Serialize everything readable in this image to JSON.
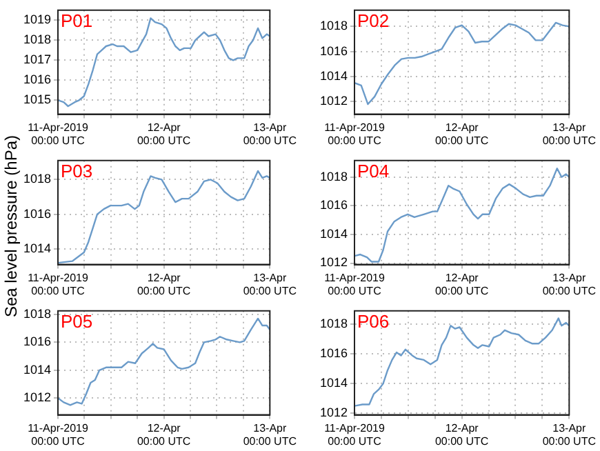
{
  "chart_data": [
    {
      "type": "line",
      "title": "P01",
      "ylim": [
        1014.3,
        1019.5
      ],
      "yticks": [
        1015,
        1016,
        1017,
        1018,
        1019
      ],
      "xlim": [
        "2019-04-11T00:00",
        "2019-04-13T00:00"
      ],
      "xticks": [
        {
          "value": "2019-04-11T00:00",
          "label": "11-Apr-2019\n00:00 UTC"
        },
        {
          "value": "2019-04-11T06:00",
          "label": null
        },
        {
          "value": "2019-04-11T12:00",
          "label": null
        },
        {
          "value": "2019-04-11T18:00",
          "label": null
        },
        {
          "value": "2019-04-12T00:00",
          "label": "12-Apr\n00:00 UTC"
        },
        {
          "value": "2019-04-12T06:00",
          "label": null
        },
        {
          "value": "2019-04-12T12:00",
          "label": null
        },
        {
          "value": "2019-04-12T18:00",
          "label": null
        },
        {
          "value": "2019-04-13T00:00",
          "label": "13-Apr\n00:00 UTC"
        }
      ],
      "grid": true,
      "series": [
        {
          "color": "#6b9bc9",
          "x": [
            "2019-04-11T00:00",
            "2019-04-11T01:18",
            "2019-04-11T02:18",
            "2019-04-11T03:48",
            "2019-04-11T04:48",
            "2019-04-11T05:54",
            "2019-04-11T06:54",
            "2019-04-11T07:54",
            "2019-04-11T08:54",
            "2019-04-11T09:54",
            "2019-04-11T10:54",
            "2019-04-11T12:24",
            "2019-04-11T13:24",
            "2019-04-11T14:54",
            "2019-04-11T16:30",
            "2019-04-11T18:00",
            "2019-04-11T19:00",
            "2019-04-11T20:00",
            "2019-04-11T21:00",
            "2019-04-11T22:00",
            "2019-04-11T23:30",
            "2019-04-12T00:36",
            "2019-04-12T01:36",
            "2019-04-12T02:36",
            "2019-04-12T03:36",
            "2019-04-12T04:36",
            "2019-04-12T06:06",
            "2019-04-12T07:06",
            "2019-04-12T08:06",
            "2019-04-12T09:06",
            "2019-04-12T10:06",
            "2019-04-12T11:42",
            "2019-04-12T12:42",
            "2019-04-12T13:42",
            "2019-04-12T14:42",
            "2019-04-12T15:42",
            "2019-04-12T16:42",
            "2019-04-12T18:12",
            "2019-04-12T19:12",
            "2019-04-12T20:12",
            "2019-04-12T21:18",
            "2019-04-12T22:18",
            "2019-04-12T23:18",
            "2019-04-13T00:00"
          ],
          "values": [
            1015,
            1014.9,
            1014.7,
            1014.9,
            1015,
            1015.2,
            1015.8,
            1016.5,
            1017.3,
            1017.5,
            1017.7,
            1017.8,
            1017.7,
            1017.7,
            1017.4,
            1017.5,
            1017.9,
            1018.3,
            1019.1,
            1018.9,
            1018.8,
            1018.6,
            1018.1,
            1017.7,
            1017.5,
            1017.6,
            1017.6,
            1018,
            1018.2,
            1018.4,
            1018.2,
            1018.3,
            1018,
            1017.5,
            1017.1,
            1017,
            1017.1,
            1017.1,
            1017.7,
            1018,
            1018.6,
            1018.1,
            1018.3,
            1018.2
          ]
        }
      ]
    },
    {
      "type": "line",
      "title": "P02",
      "ylim": [
        1011,
        1019.3
      ],
      "yticks": [
        1012,
        1014,
        1016,
        1018
      ],
      "xlim": [
        "2019-04-11T00:00",
        "2019-04-13T00:00"
      ],
      "xticks": [
        {
          "value": "2019-04-11T00:00",
          "label": "11-Apr-2019\n00:00 UTC"
        },
        {
          "value": "2019-04-11T06:00",
          "label": null
        },
        {
          "value": "2019-04-11T12:00",
          "label": null
        },
        {
          "value": "2019-04-11T18:00",
          "label": null
        },
        {
          "value": "2019-04-12T00:00",
          "label": "12-Apr\n00:00 UTC"
        },
        {
          "value": "2019-04-12T06:00",
          "label": null
        },
        {
          "value": "2019-04-12T12:00",
          "label": null
        },
        {
          "value": "2019-04-12T18:00",
          "label": null
        },
        {
          "value": "2019-04-13T00:00",
          "label": "13-Apr\n00:00 UTC"
        }
      ],
      "grid": true,
      "series": [
        {
          "color": "#6b9bc9",
          "x": [
            "2019-04-11T00:00",
            "2019-04-11T01:30",
            "2019-04-11T03:00",
            "2019-04-11T04:30",
            "2019-04-11T06:00",
            "2019-04-11T07:30",
            "2019-04-11T09:00",
            "2019-04-11T10:30",
            "2019-04-11T12:00",
            "2019-04-11T13:30",
            "2019-04-11T15:00",
            "2019-04-11T16:30",
            "2019-04-11T18:00",
            "2019-04-11T19:30",
            "2019-04-11T21:00",
            "2019-04-11T22:30",
            "2019-04-12T00:00",
            "2019-04-12T01:30",
            "2019-04-12T03:00",
            "2019-04-12T04:30",
            "2019-04-12T06:00",
            "2019-04-12T07:30",
            "2019-04-12T09:00",
            "2019-04-12T10:30",
            "2019-04-12T12:00",
            "2019-04-12T13:30",
            "2019-04-12T15:00",
            "2019-04-12T16:30",
            "2019-04-12T18:00",
            "2019-04-12T19:30",
            "2019-04-12T21:00",
            "2019-04-12T22:30",
            "2019-04-13T00:00"
          ],
          "values": [
            1013.5,
            1013.3,
            1011.8,
            1012.4,
            1013.4,
            1014.2,
            1014.9,
            1015.4,
            1015.5,
            1015.5,
            1015.6,
            1015.8,
            1016,
            1016.2,
            1017.1,
            1017.9,
            1018.1,
            1017.6,
            1016.7,
            1016.8,
            1016.8,
            1017.3,
            1017.8,
            1018.2,
            1018.1,
            1017.8,
            1017.5,
            1016.9,
            1016.9,
            1017.6,
            1018.3,
            1018.1,
            1018
          ]
        }
      ]
    },
    {
      "type": "line",
      "title": "P03",
      "ylabel": "Sea level pressure (hPa)",
      "ylim": [
        1013.1,
        1019.1
      ],
      "yticks": [
        1014,
        1016,
        1018
      ],
      "xlim": [
        "2019-04-11T00:00",
        "2019-04-13T00:00"
      ],
      "xticks": [
        {
          "value": "2019-04-11T00:00",
          "label": "11-Apr-2019\n00:00 UTC"
        },
        {
          "value": "2019-04-11T06:00",
          "label": null
        },
        {
          "value": "2019-04-11T12:00",
          "label": null
        },
        {
          "value": "2019-04-11T18:00",
          "label": null
        },
        {
          "value": "2019-04-12T00:00",
          "label": "12-Apr\n00:00 UTC"
        },
        {
          "value": "2019-04-12T06:00",
          "label": null
        },
        {
          "value": "2019-04-12T12:00",
          "label": null
        },
        {
          "value": "2019-04-12T18:00",
          "label": null
        },
        {
          "value": "2019-04-13T00:00",
          "label": "13-Apr\n00:00 UTC"
        }
      ],
      "grid": true,
      "series": [
        {
          "color": "#6b9bc9",
          "x": [
            "2019-04-11T00:00",
            "2019-04-11T03:18",
            "2019-04-11T05:54",
            "2019-04-11T06:54",
            "2019-04-11T07:54",
            "2019-04-11T08:54",
            "2019-04-11T10:24",
            "2019-04-11T11:54",
            "2019-04-11T14:24",
            "2019-04-11T15:54",
            "2019-04-11T17:24",
            "2019-04-11T18:24",
            "2019-04-11T19:24",
            "2019-04-11T21:00",
            "2019-04-11T22:00",
            "2019-04-11T23:30",
            "2019-04-12T01:06",
            "2019-04-12T02:36",
            "2019-04-12T04:06",
            "2019-04-12T05:36",
            "2019-04-12T07:36",
            "2019-04-12T09:06",
            "2019-04-12T10:36",
            "2019-04-12T12:06",
            "2019-04-12T13:42",
            "2019-04-12T15:12",
            "2019-04-12T16:42",
            "2019-04-12T18:12",
            "2019-04-12T19:42",
            "2019-04-12T21:18",
            "2019-04-12T22:18",
            "2019-04-12T23:18",
            "2019-04-13T00:00"
          ],
          "values": [
            1013.2,
            1013.3,
            1013.8,
            1014.4,
            1015.2,
            1016,
            1016.3,
            1016.5,
            1016.5,
            1016.6,
            1016.3,
            1016.5,
            1017.3,
            1018.2,
            1018.1,
            1018,
            1017.3,
            1016.7,
            1016.9,
            1016.9,
            1017.3,
            1017.9,
            1018,
            1017.8,
            1017.3,
            1017,
            1016.8,
            1016.9,
            1017.6,
            1018.5,
            1018.1,
            1018.2,
            1018.1
          ]
        }
      ]
    },
    {
      "type": "line",
      "title": "P04",
      "ylim": [
        1011.9,
        1019.15
      ],
      "yticks": [
        1012,
        1014,
        1016,
        1018
      ],
      "xlim": [
        "2019-04-11T00:00",
        "2019-04-13T00:00"
      ],
      "xticks": [
        {
          "value": "2019-04-11T00:00",
          "label": "11-Apr-2019\n00:00 UTC"
        },
        {
          "value": "2019-04-11T06:00",
          "label": null
        },
        {
          "value": "2019-04-11T12:00",
          "label": null
        },
        {
          "value": "2019-04-11T18:00",
          "label": null
        },
        {
          "value": "2019-04-12T00:00",
          "label": "12-Apr\n00:00 UTC"
        },
        {
          "value": "2019-04-12T06:00",
          "label": null
        },
        {
          "value": "2019-04-12T12:00",
          "label": null
        },
        {
          "value": "2019-04-12T18:00",
          "label": null
        },
        {
          "value": "2019-04-13T00:00",
          "label": "13-Apr\n00:00 UTC"
        }
      ],
      "grid": true,
      "series": [
        {
          "color": "#6b9bc9",
          "x": [
            "2019-04-11T00:00",
            "2019-04-11T01:18",
            "2019-04-11T02:48",
            "2019-04-11T03:48",
            "2019-04-11T05:24",
            "2019-04-11T06:24",
            "2019-04-11T07:24",
            "2019-04-11T08:54",
            "2019-04-11T10:24",
            "2019-04-11T11:54",
            "2019-04-11T13:24",
            "2019-04-11T15:30",
            "2019-04-11T17:30",
            "2019-04-11T18:30",
            "2019-04-11T19:30",
            "2019-04-11T21:00",
            "2019-04-11T22:00",
            "2019-04-11T23:30",
            "2019-04-12T01:06",
            "2019-04-12T02:36",
            "2019-04-12T03:36",
            "2019-04-12T04:36",
            "2019-04-12T06:06",
            "2019-04-12T07:36",
            "2019-04-12T09:06",
            "2019-04-12T10:36",
            "2019-04-12T12:06",
            "2019-04-12T13:42",
            "2019-04-12T15:12",
            "2019-04-12T16:42",
            "2019-04-12T18:12",
            "2019-04-12T19:42",
            "2019-04-12T21:18",
            "2019-04-12T22:18",
            "2019-04-12T23:18",
            "2019-04-13T00:00"
          ],
          "values": [
            1012.5,
            1012.6,
            1012.4,
            1012.1,
            1012.1,
            1012.9,
            1014.2,
            1014.9,
            1015.2,
            1015.4,
            1015.2,
            1015.4,
            1015.6,
            1015.6,
            1016.3,
            1017.4,
            1017.2,
            1017,
            1016.1,
            1015.4,
            1015.1,
            1015.4,
            1015.4,
            1016.5,
            1017.2,
            1017.5,
            1017.2,
            1016.8,
            1016.6,
            1016.7,
            1016.7,
            1017.4,
            1018.6,
            1018,
            1018.2,
            1018
          ]
        }
      ]
    },
    {
      "type": "line",
      "title": "P05",
      "ylim": [
        1010.8,
        1018.25
      ],
      "yticks": [
        1012,
        1014,
        1016,
        1018
      ],
      "xlim": [
        "2019-04-11T00:00",
        "2019-04-13T00:00"
      ],
      "xticks": [
        {
          "value": "2019-04-11T00:00",
          "label": "11-Apr-2019\n00:00 UTC"
        },
        {
          "value": "2019-04-11T06:00",
          "label": null
        },
        {
          "value": "2019-04-11T12:00",
          "label": null
        },
        {
          "value": "2019-04-11T18:00",
          "label": null
        },
        {
          "value": "2019-04-12T00:00",
          "label": "12-Apr\n00:00 UTC"
        },
        {
          "value": "2019-04-12T06:00",
          "label": null
        },
        {
          "value": "2019-04-12T12:00",
          "label": null
        },
        {
          "value": "2019-04-12T18:00",
          "label": null
        },
        {
          "value": "2019-04-13T00:00",
          "label": "13-Apr\n00:00 UTC"
        }
      ],
      "grid": true,
      "series": [
        {
          "color": "#6b9bc9",
          "x": [
            "2019-04-11T00:00",
            "2019-04-11T01:18",
            "2019-04-11T02:48",
            "2019-04-11T04:18",
            "2019-04-11T05:24",
            "2019-04-11T06:24",
            "2019-04-11T07:24",
            "2019-04-11T08:24",
            "2019-04-11T09:24",
            "2019-04-11T10:54",
            "2019-04-11T12:24",
            "2019-04-11T14:24",
            "2019-04-11T15:54",
            "2019-04-11T17:30",
            "2019-04-11T19:00",
            "2019-04-11T20:30",
            "2019-04-11T21:30",
            "2019-04-11T22:30",
            "2019-04-12T00:00",
            "2019-04-12T01:36",
            "2019-04-12T03:06",
            "2019-04-12T04:06",
            "2019-04-12T05:36",
            "2019-04-12T07:06",
            "2019-04-12T08:06",
            "2019-04-12T09:06",
            "2019-04-12T10:36",
            "2019-04-12T11:42",
            "2019-04-12T12:42",
            "2019-04-12T14:12",
            "2019-04-12T15:42",
            "2019-04-12T17:12",
            "2019-04-12T18:12",
            "2019-04-12T19:42",
            "2019-04-12T21:18",
            "2019-04-12T22:18",
            "2019-04-12T23:18",
            "2019-04-13T00:00"
          ],
          "values": [
            1012,
            1011.7,
            1011.5,
            1011.7,
            1011.6,
            1012.3,
            1013.1,
            1013.3,
            1014,
            1014.2,
            1014.2,
            1014.2,
            1014.6,
            1014.5,
            1015.2,
            1015.6,
            1015.9,
            1015.6,
            1015.5,
            1014.7,
            1014.2,
            1014.1,
            1014.2,
            1014.5,
            1015.3,
            1016,
            1016.1,
            1016.2,
            1016.4,
            1016.2,
            1016.1,
            1016,
            1016.1,
            1016.9,
            1017.7,
            1017.2,
            1017.2,
            1016.9
          ]
        }
      ]
    },
    {
      "type": "line",
      "title": "P06",
      "ylim": [
        1011.9,
        1018.9
      ],
      "yticks": [
        1012,
        1014,
        1016,
        1018
      ],
      "xlim": [
        "2019-04-11T00:00",
        "2019-04-13T00:00"
      ],
      "xticks": [
        {
          "value": "2019-04-11T00:00",
          "label": "11-Apr-2019\n00:00 UTC"
        },
        {
          "value": "2019-04-11T06:00",
          "label": null
        },
        {
          "value": "2019-04-11T12:00",
          "label": null
        },
        {
          "value": "2019-04-11T18:00",
          "label": null
        },
        {
          "value": "2019-04-12T00:00",
          "label": "12-Apr\n00:00 UTC"
        },
        {
          "value": "2019-04-12T06:00",
          "label": null
        },
        {
          "value": "2019-04-12T12:00",
          "label": null
        },
        {
          "value": "2019-04-12T18:00",
          "label": null
        },
        {
          "value": "2019-04-13T00:00",
          "label": "13-Apr\n00:00 UTC"
        }
      ],
      "grid": true,
      "series": [
        {
          "color": "#6b9bc9",
          "x": [
            "2019-04-11T00:00",
            "2019-04-11T01:48",
            "2019-04-11T03:18",
            "2019-04-11T04:18",
            "2019-04-11T05:24",
            "2019-04-11T06:24",
            "2019-04-11T07:24",
            "2019-04-11T08:24",
            "2019-04-11T09:24",
            "2019-04-11T10:24",
            "2019-04-11T11:24",
            "2019-04-11T12:54",
            "2019-04-11T13:54",
            "2019-04-11T15:30",
            "2019-04-11T17:00",
            "2019-04-11T18:30",
            "2019-04-11T19:30",
            "2019-04-11T20:30",
            "2019-04-11T21:30",
            "2019-04-11T22:30",
            "2019-04-11T23:30",
            "2019-04-12T01:06",
            "2019-04-12T02:36",
            "2019-04-12T03:36",
            "2019-04-12T04:36",
            "2019-04-12T06:06",
            "2019-04-12T07:06",
            "2019-04-12T08:36",
            "2019-04-12T09:36",
            "2019-04-12T11:06",
            "2019-04-12T12:42",
            "2019-04-12T14:12",
            "2019-04-12T15:42",
            "2019-04-12T17:12",
            "2019-04-12T18:42",
            "2019-04-12T20:12",
            "2019-04-12T21:36",
            "2019-04-12T22:18",
            "2019-04-12T23:18",
            "2019-04-13T00:00"
          ],
          "values": [
            1012.5,
            1012.6,
            1012.6,
            1013.3,
            1013.6,
            1014,
            1014.9,
            1015.6,
            1016.1,
            1015.9,
            1016.3,
            1015.9,
            1015.7,
            1015.6,
            1015.3,
            1015.6,
            1016.6,
            1017.1,
            1017.9,
            1017.7,
            1017.8,
            1017.1,
            1016.6,
            1016.4,
            1016.6,
            1016.5,
            1017.1,
            1017.3,
            1017.6,
            1017.4,
            1017.3,
            1016.9,
            1016.7,
            1016.7,
            1017.1,
            1017.6,
            1018.4,
            1017.9,
            1018.1,
            1017.9
          ]
        }
      ]
    }
  ]
}
